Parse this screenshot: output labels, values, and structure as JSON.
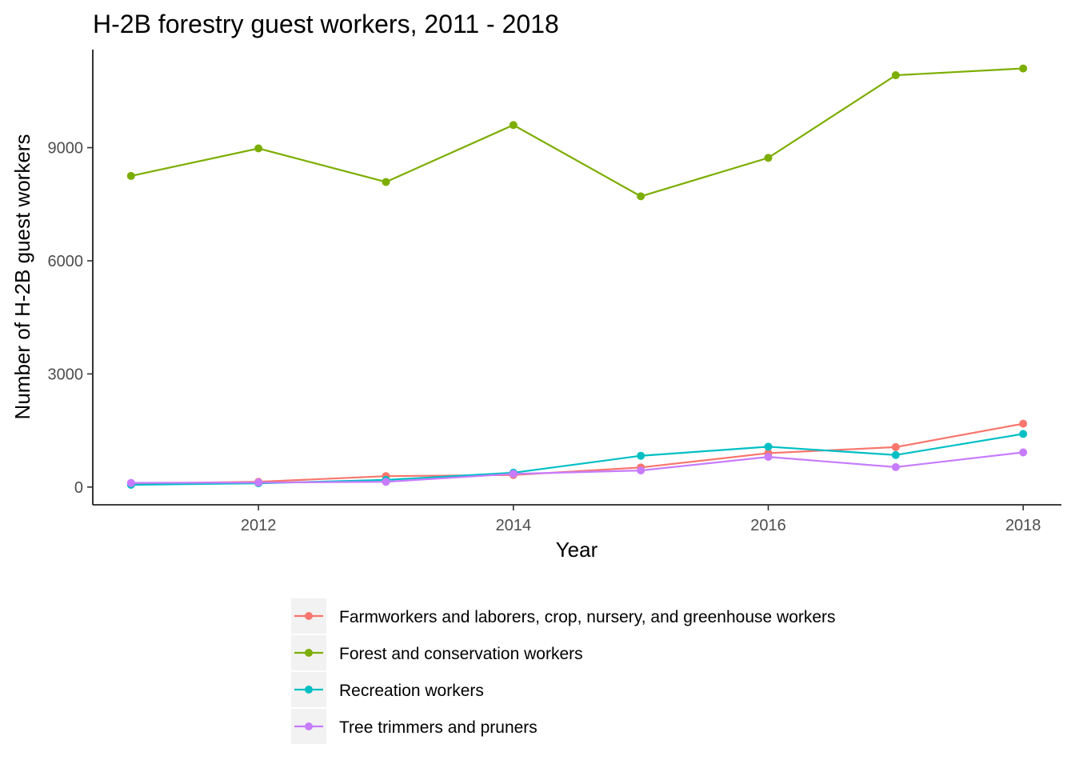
{
  "chart_data": {
    "type": "line",
    "title": "H-2B forestry guest workers, 2011 - 2018",
    "xlabel": "Year",
    "ylabel": "Number of H-2B guest workers",
    "x": [
      2011,
      2012,
      2013,
      2014,
      2015,
      2016,
      2017,
      2018
    ],
    "xlim": [
      2010.7,
      2018.3
    ],
    "ylim": [
      -470,
      11600
    ],
    "x_ticks": [
      "2012",
      "2014",
      "2016",
      "2018"
    ],
    "y_ticks": [
      "0",
      "3000",
      "6000",
      "9000"
    ],
    "grid": false,
    "legend_position": "bottom",
    "series": [
      {
        "name": "Farmworkers and laborers, crop, nursery, and greenhouse workers",
        "color": "#F8766D",
        "values": [
          90,
          140,
          290,
          320,
          520,
          900,
          1060,
          1680
        ]
      },
      {
        "name": "Forest and conservation workers",
        "color": "#7CAE00",
        "values": [
          8250,
          8980,
          8090,
          9600,
          7710,
          8730,
          10920,
          11100
        ]
      },
      {
        "name": "Recreation workers",
        "color": "#00BFC4",
        "values": [
          60,
          100,
          190,
          380,
          830,
          1070,
          850,
          1410
        ]
      },
      {
        "name": "Tree trimmers and pruners",
        "color": "#C77CFF",
        "values": [
          110,
          120,
          140,
          350,
          440,
          800,
          530,
          920
        ]
      }
    ]
  }
}
